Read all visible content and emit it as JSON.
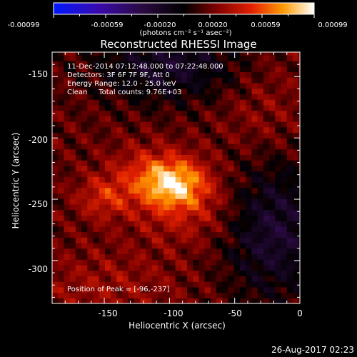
{
  "colorbar": {
    "ticks": [
      "-0.00099",
      "-0.00059",
      "-0.00020",
      "0.00020",
      "0.00059",
      "0.00099"
    ],
    "unit_label": "(photons cm⁻² s⁻¹ asec⁻²)"
  },
  "chart_data": {
    "type": "heatmap",
    "title": "Reconstructed RHESSI Image",
    "xlabel": "Heliocentric X (arcsec)",
    "ylabel": "Heliocentric Y (arcsec)",
    "xlim": [
      -190,
      0
    ],
    "ylim": [
      -335,
      -130
    ],
    "x_ticks": [
      "-150",
      "-100",
      "-50",
      "0"
    ],
    "y_ticks": [
      "-150",
      "-200",
      "-250",
      "-300"
    ],
    "color_range": [
      -0.00099,
      0.00099
    ],
    "colormap": "RHESSI (blue-purple-black-red-yellow-white)",
    "peak": {
      "x": -96,
      "y": -237
    },
    "annotations": [
      "11-Dec-2014 07:12:48.000 to 07:22:48.000",
      "Detectors: 3F 6F 7F 9F, Att 0",
      "Energy Range: 12.0 - 25.0 keV",
      "Clean     Total counts: 9.76E+03"
    ],
    "peak_label": "Position of Peak = [-96,-237]",
    "footer_timestamp": "26-Aug-2017 02:23"
  }
}
